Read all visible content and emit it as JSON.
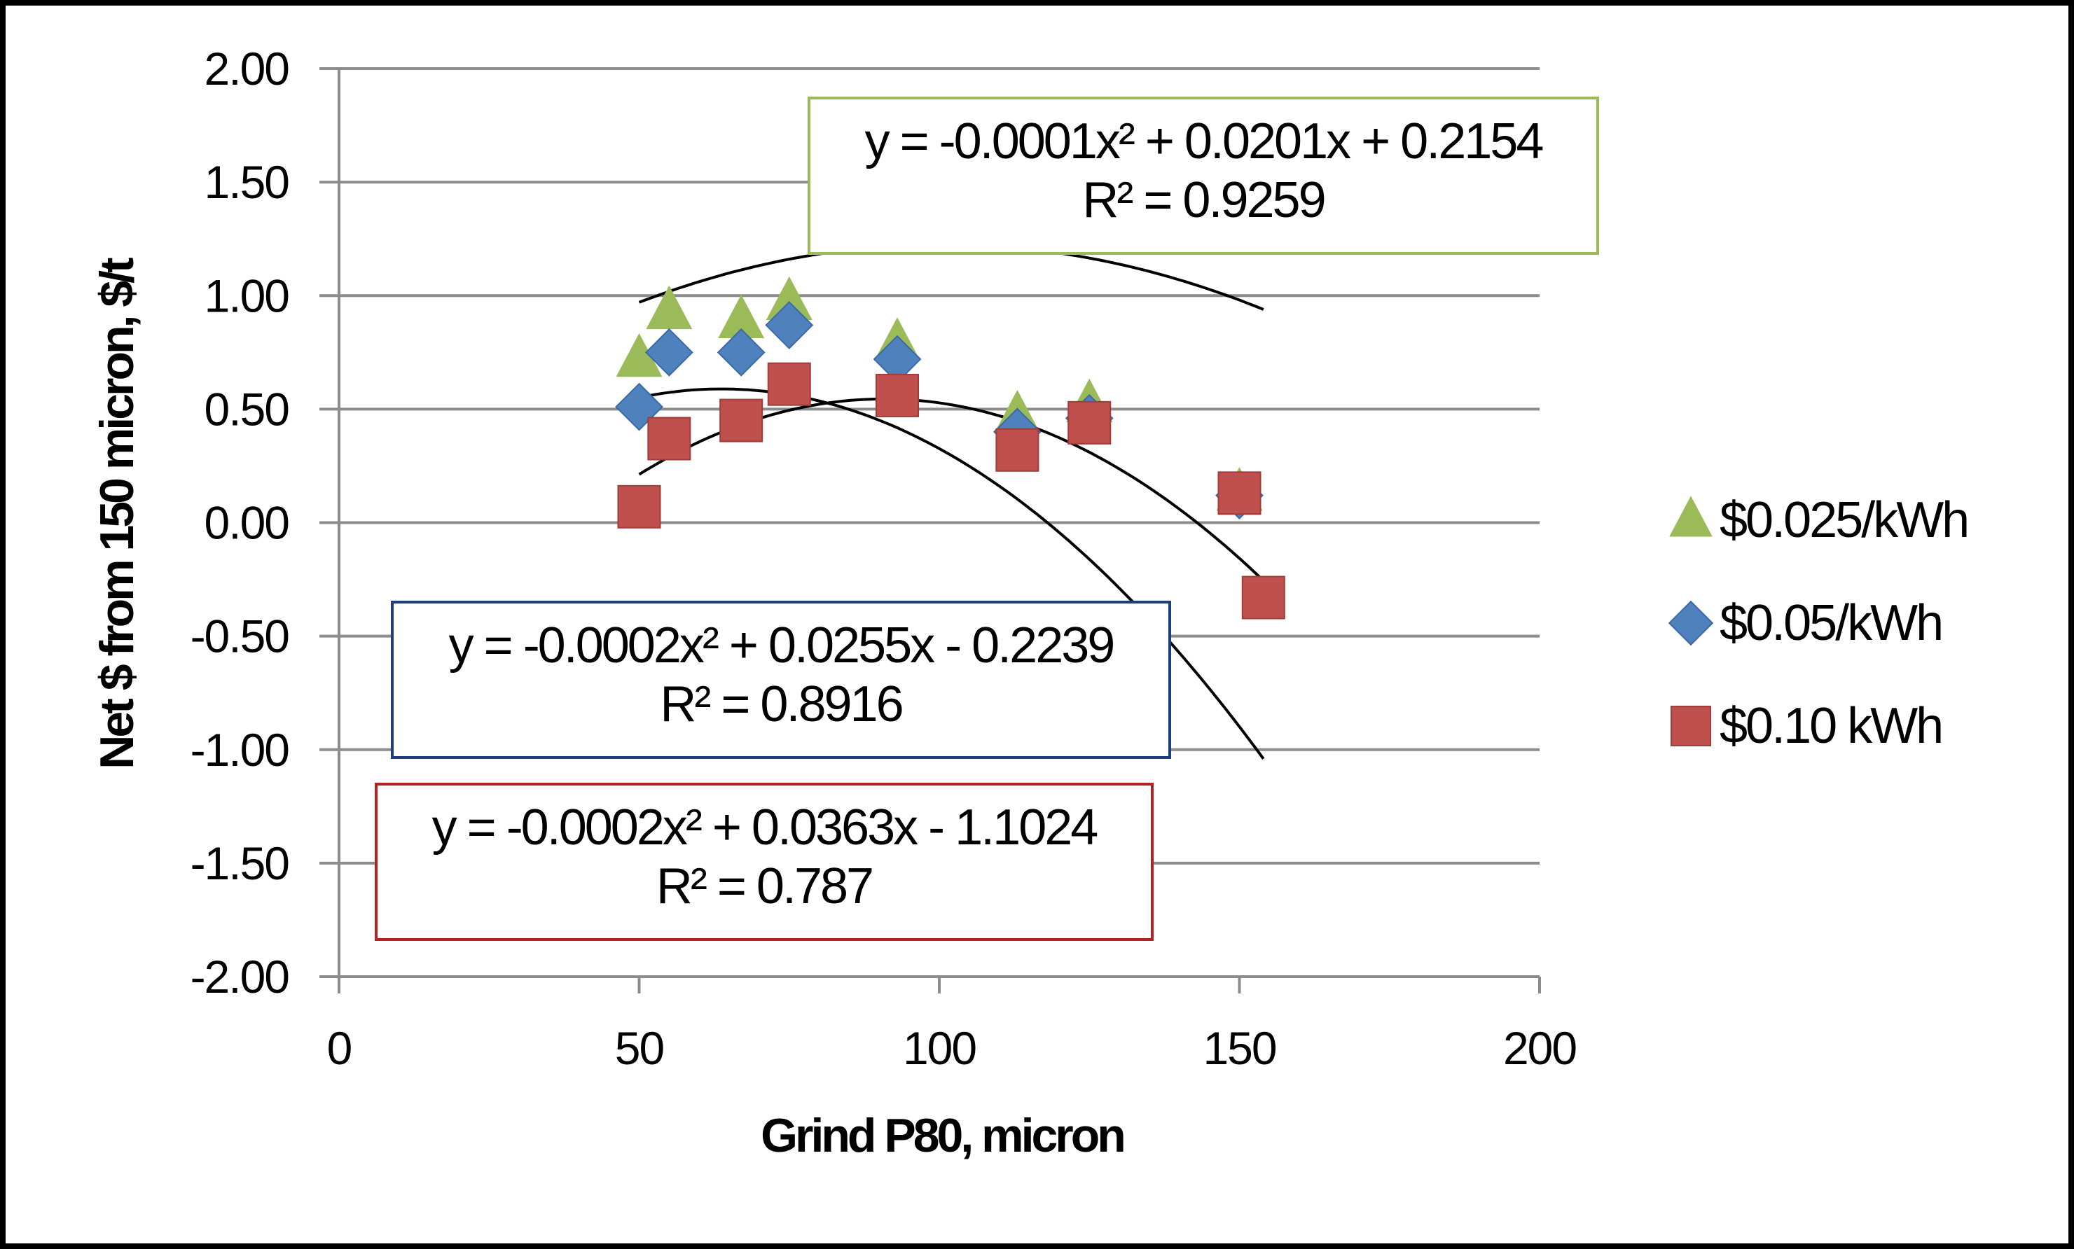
{
  "chart_data": {
    "type": "scatter",
    "xlabel": "Grind P80, micron",
    "ylabel": "Net $ from 150 micron, $/t",
    "xlim": [
      0,
      200
    ],
    "ylim": [
      -2.0,
      2.0
    ],
    "x_ticks": [
      0,
      50,
      100,
      150,
      200
    ],
    "x_tick_labels": [
      "0",
      "50",
      "100",
      "150",
      "200"
    ],
    "y_ticks": [
      2.0,
      1.5,
      1.0,
      0.5,
      0.0,
      -0.5,
      -1.0,
      -1.5,
      -2.0
    ],
    "y_tick_labels": [
      "2.00",
      "1.50",
      "1.00",
      "0.50",
      "0.00",
      "-0.50",
      "-1.00",
      "-1.50",
      "-2.00"
    ],
    "grid": true,
    "legend_position": "right",
    "series": [
      {
        "name": "$0.025/kWh",
        "marker": "triangle",
        "color": "#9BBB59",
        "x": [
          50,
          55,
          67,
          75,
          93,
          113,
          125,
          150
        ],
        "y": [
          0.72,
          0.93,
          0.89,
          0.97,
          0.79,
          0.47,
          0.52,
          0.13
        ]
      },
      {
        "name": "$0.05/kWh",
        "marker": "diamond",
        "color": "#4F81BD",
        "x": [
          50,
          55,
          67,
          75,
          93,
          113,
          125,
          150
        ],
        "y": [
          0.51,
          0.75,
          0.75,
          0.87,
          0.72,
          0.4,
          0.46,
          0.12
        ]
      },
      {
        "name": "$0.10 kWh",
        "marker": "square",
        "color": "#C0504D",
        "x": [
          50,
          55,
          67,
          75,
          93,
          113,
          125,
          150,
          154
        ],
        "y": [
          0.07,
          0.37,
          0.45,
          0.61,
          0.56,
          0.32,
          0.44,
          0.13,
          -0.33
        ]
      }
    ],
    "trendlines": [
      {
        "series": "$0.025/kWh",
        "type": "polynomial-2",
        "coefficients": [
          -0.0001,
          0.0201,
          0.2154
        ],
        "x_range": [
          50,
          154
        ],
        "color": "#000000"
      },
      {
        "series": "$0.05/kWh",
        "type": "polynomial-2",
        "coefficients": [
          -0.0002,
          0.0255,
          -0.2239
        ],
        "x_range": [
          50,
          154
        ],
        "color": "#000000"
      },
      {
        "series": "$0.10 kWh",
        "type": "polynomial-2",
        "coefficients": [
          -0.0002,
          0.0363,
          -1.1024
        ],
        "x_range": [
          50,
          154
        ],
        "color": "#000000"
      }
    ],
    "annotations": [
      {
        "name": "equation-box-green",
        "border_color": "#9BBB59",
        "equation": "y = -0.0001x² + 0.0201x + 0.2154",
        "r_squared": "R² = 0.9259"
      },
      {
        "name": "equation-box-blue",
        "border_color": "#1F3D7A",
        "equation": "y = -0.0002x² + 0.0255x - 0.2239",
        "r_squared": "R² = 0.8916"
      },
      {
        "name": "equation-box-red",
        "border_color": "#B22222",
        "equation": "y = -0.0002x² + 0.0363x - 1.1024",
        "r_squared": "R² = 0.787"
      }
    ]
  }
}
